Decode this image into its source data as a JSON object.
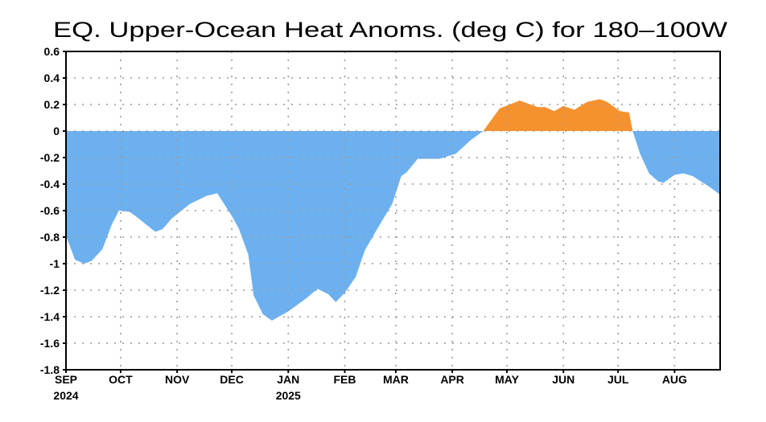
{
  "chart_data": {
    "type": "area",
    "title": "EQ. Upper-Ocean Heat Anoms. (deg C) for 180–100W",
    "xlabel": "",
    "ylabel": "",
    "xlim": [
      "2024-09-01",
      "2025-08-26"
    ],
    "ylim": [
      -1.8,
      0.6
    ],
    "grid": true,
    "grid_style": "dotted",
    "positive_color": "#f6922e",
    "negative_color": "#6cb0f0",
    "y_ticks": [
      0.6,
      0.4,
      0.2,
      0,
      -0.2,
      -0.4,
      -0.6,
      -0.8,
      -1,
      -1.2,
      -1.4,
      -1.6,
      -1.8
    ],
    "y_tick_labels": [
      "0.6",
      "0.4",
      "0.2",
      "0",
      "-0.2",
      "-0.4",
      "-0.6",
      "-0.8",
      "-1",
      "-1.2",
      "-1.4",
      "-1.6",
      "-1.8"
    ],
    "x_ticks": [
      {
        "date": "2024-09-01",
        "label": "SEP",
        "sublabel": "2024"
      },
      {
        "date": "2024-10-01",
        "label": "OCT"
      },
      {
        "date": "2024-11-01",
        "label": "NOV"
      },
      {
        "date": "2024-12-01",
        "label": "DEC"
      },
      {
        "date": "2025-01-01",
        "label": "JAN",
        "sublabel": "2025"
      },
      {
        "date": "2025-02-01",
        "label": "FEB"
      },
      {
        "date": "2025-03-01",
        "label": "MAR"
      },
      {
        "date": "2025-04-01",
        "label": "APR"
      },
      {
        "date": "2025-05-01",
        "label": "MAY"
      },
      {
        "date": "2025-06-01",
        "label": "JUN"
      },
      {
        "date": "2025-07-01",
        "label": "JUL"
      },
      {
        "date": "2025-08-01",
        "label": "AUG"
      }
    ],
    "x": [
      "2024-09-01",
      "2024-09-06",
      "2024-09-11",
      "2024-09-15",
      "2024-09-21",
      "2024-09-26",
      "2024-09-30",
      "2024-10-06",
      "2024-10-10",
      "2024-10-20",
      "2024-10-24",
      "2024-10-29",
      "2024-11-08",
      "2024-11-17",
      "2024-11-23",
      "2024-12-01",
      "2024-12-05",
      "2024-12-10",
      "2024-12-13",
      "2024-12-18",
      "2024-12-23",
      "2025-01-01",
      "2025-01-11",
      "2025-01-17",
      "2025-01-23",
      "2025-01-27",
      "2025-02-01",
      "2025-02-07",
      "2025-02-12",
      "2025-02-20",
      "2025-02-27",
      "2025-03-04",
      "2025-03-07",
      "2025-03-13",
      "2025-03-25",
      "2025-04-03",
      "2025-04-11",
      "2025-04-18",
      "2025-04-27",
      "2025-05-08",
      "2025-05-18",
      "2025-05-22",
      "2025-05-27",
      "2025-06-01",
      "2025-06-07",
      "2025-06-14",
      "2025-06-21",
      "2025-06-25",
      "2025-07-02",
      "2025-07-07",
      "2025-07-09",
      "2025-07-13",
      "2025-07-18",
      "2025-07-23",
      "2025-07-26",
      "2025-08-01",
      "2025-08-06",
      "2025-08-11",
      "2025-08-20",
      "2025-08-26"
    ],
    "values": [
      -0.79,
      -0.97,
      -1.0,
      -0.98,
      -0.89,
      -0.71,
      -0.6,
      -0.61,
      -0.65,
      -0.76,
      -0.74,
      -0.66,
      -0.55,
      -0.49,
      -0.47,
      -0.64,
      -0.74,
      -0.93,
      -1.24,
      -1.38,
      -1.43,
      -1.36,
      -1.26,
      -1.19,
      -1.23,
      -1.29,
      -1.22,
      -1.1,
      -0.9,
      -0.71,
      -0.55,
      -0.34,
      -0.31,
      -0.21,
      -0.21,
      -0.17,
      -0.07,
      0.0,
      0.17,
      0.23,
      0.18,
      0.18,
      0.15,
      0.19,
      0.16,
      0.22,
      0.24,
      0.22,
      0.15,
      0.14,
      0.0,
      -0.17,
      -0.32,
      -0.38,
      -0.39,
      -0.33,
      -0.32,
      -0.34,
      -0.42,
      -0.48
    ]
  }
}
